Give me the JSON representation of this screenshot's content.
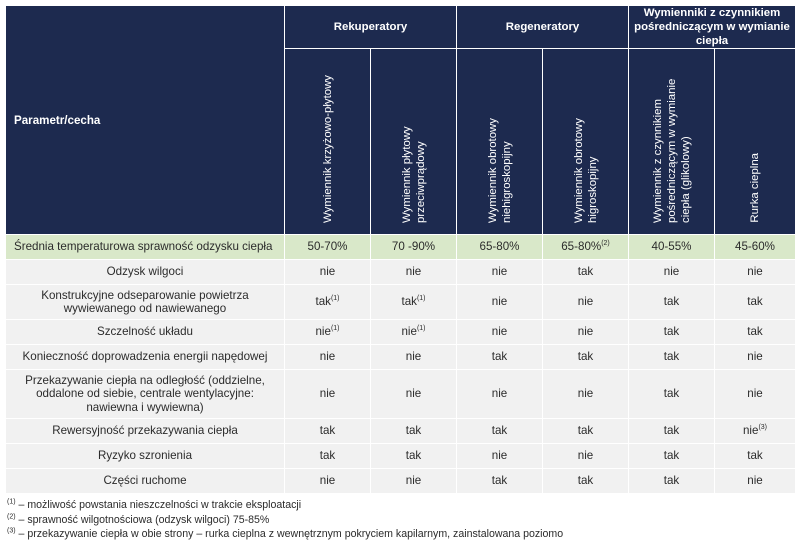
{
  "header": {
    "param_label": "Parametr/cecha",
    "groups": [
      {
        "label": "Rekuperatory"
      },
      {
        "label": "Regeneratory"
      },
      {
        "label": "Wymienniki z czynnikiem pośredniczącym w wymianie ciepła"
      }
    ],
    "columns": [
      {
        "label": "Wymiennik krzyżowo-płytowy"
      },
      {
        "label": "Wymiennik płytowy przeciwprądowy"
      },
      {
        "label": "Wymiennik obrotowy niehigroskopijny"
      },
      {
        "label": "Wymiennik obrotowy higroskopijny"
      },
      {
        "label": "Wymiennik z czynnikiem pośredniczącym w wymianie ciepła (glikolowy)"
      },
      {
        "label": "Rurka cieplna"
      }
    ]
  },
  "rows": [
    {
      "label": "Średnia temperaturowa sprawność odzysku ciepła",
      "cells": [
        {
          "v": "50-70%",
          "n": ""
        },
        {
          "v": "70 -90%",
          "n": ""
        },
        {
          "v": "65-80%",
          "n": ""
        },
        {
          "v": "65-80%",
          "n": "(2)"
        },
        {
          "v": "40-55%",
          "n": ""
        },
        {
          "v": "45-60%",
          "n": ""
        }
      ]
    },
    {
      "label": "Odzysk wilgoci",
      "cells": [
        {
          "v": "nie",
          "n": ""
        },
        {
          "v": "nie",
          "n": ""
        },
        {
          "v": "nie",
          "n": ""
        },
        {
          "v": "tak",
          "n": ""
        },
        {
          "v": "nie",
          "n": ""
        },
        {
          "v": "nie",
          "n": ""
        }
      ]
    },
    {
      "label": "Konstrukcyjne odseparowanie powietrza wywiewanego od nawiewanego",
      "cells": [
        {
          "v": "tak",
          "n": "(1)"
        },
        {
          "v": "tak",
          "n": "(1)"
        },
        {
          "v": "nie",
          "n": ""
        },
        {
          "v": "nie",
          "n": ""
        },
        {
          "v": "tak",
          "n": ""
        },
        {
          "v": "tak",
          "n": ""
        }
      ]
    },
    {
      "label": "Szczelność układu",
      "cells": [
        {
          "v": "nie",
          "n": "(1)"
        },
        {
          "v": "nie",
          "n": "(1)"
        },
        {
          "v": "nie",
          "n": ""
        },
        {
          "v": "nie",
          "n": ""
        },
        {
          "v": "tak",
          "n": ""
        },
        {
          "v": "tak",
          "n": ""
        }
      ]
    },
    {
      "label": "Konieczność doprowadzenia energii napędowej",
      "cells": [
        {
          "v": "nie",
          "n": ""
        },
        {
          "v": "nie",
          "n": ""
        },
        {
          "v": "tak",
          "n": ""
        },
        {
          "v": "tak",
          "n": ""
        },
        {
          "v": "tak",
          "n": ""
        },
        {
          "v": "nie",
          "n": ""
        }
      ]
    },
    {
      "label": "Przekazywanie ciepła na odległość (oddzielne, oddalone od siebie, centrale wentylacyjne: nawiewna i wywiewna)",
      "cells": [
        {
          "v": "nie",
          "n": ""
        },
        {
          "v": "nie",
          "n": ""
        },
        {
          "v": "nie",
          "n": ""
        },
        {
          "v": "nie",
          "n": ""
        },
        {
          "v": "tak",
          "n": ""
        },
        {
          "v": "nie",
          "n": ""
        }
      ]
    },
    {
      "label": "Rewersyjność przekazywania ciepła",
      "cells": [
        {
          "v": "tak",
          "n": ""
        },
        {
          "v": "tak",
          "n": ""
        },
        {
          "v": "tak",
          "n": ""
        },
        {
          "v": "tak",
          "n": ""
        },
        {
          "v": "tak",
          "n": ""
        },
        {
          "v": "nie",
          "n": "(3)"
        }
      ]
    },
    {
      "label": "Ryzyko szronienia",
      "cells": [
        {
          "v": "tak",
          "n": ""
        },
        {
          "v": "tak",
          "n": ""
        },
        {
          "v": "nie",
          "n": ""
        },
        {
          "v": "nie",
          "n": ""
        },
        {
          "v": "tak",
          "n": ""
        },
        {
          "v": "tak",
          "n": ""
        }
      ]
    },
    {
      "label": "Części ruchome",
      "cells": [
        {
          "v": "nie",
          "n": ""
        },
        {
          "v": "nie",
          "n": ""
        },
        {
          "v": "tak",
          "n": ""
        },
        {
          "v": "tak",
          "n": ""
        },
        {
          "v": "tak",
          "n": ""
        },
        {
          "v": "nie",
          "n": ""
        }
      ]
    }
  ],
  "footnotes": [
    {
      "mark": "(1)",
      "text": " – możliwość powstania nieszczelności w trakcie eksploatacji"
    },
    {
      "mark": "(2)",
      "text": " – sprawność wilgotnościowa (odzysk wilgoci) 75-85%"
    },
    {
      "mark": "(3)",
      "text": " – przekazywanie ciepła w obie strony – rurka cieplna z wewnętrznym pokryciem kapilarnym, zainstalowana poziomo"
    }
  ],
  "colors": {
    "header_bg": "#1d2a4f",
    "first_row_bg": "#d9e8c9",
    "row_bg": "#f1f1f1"
  }
}
